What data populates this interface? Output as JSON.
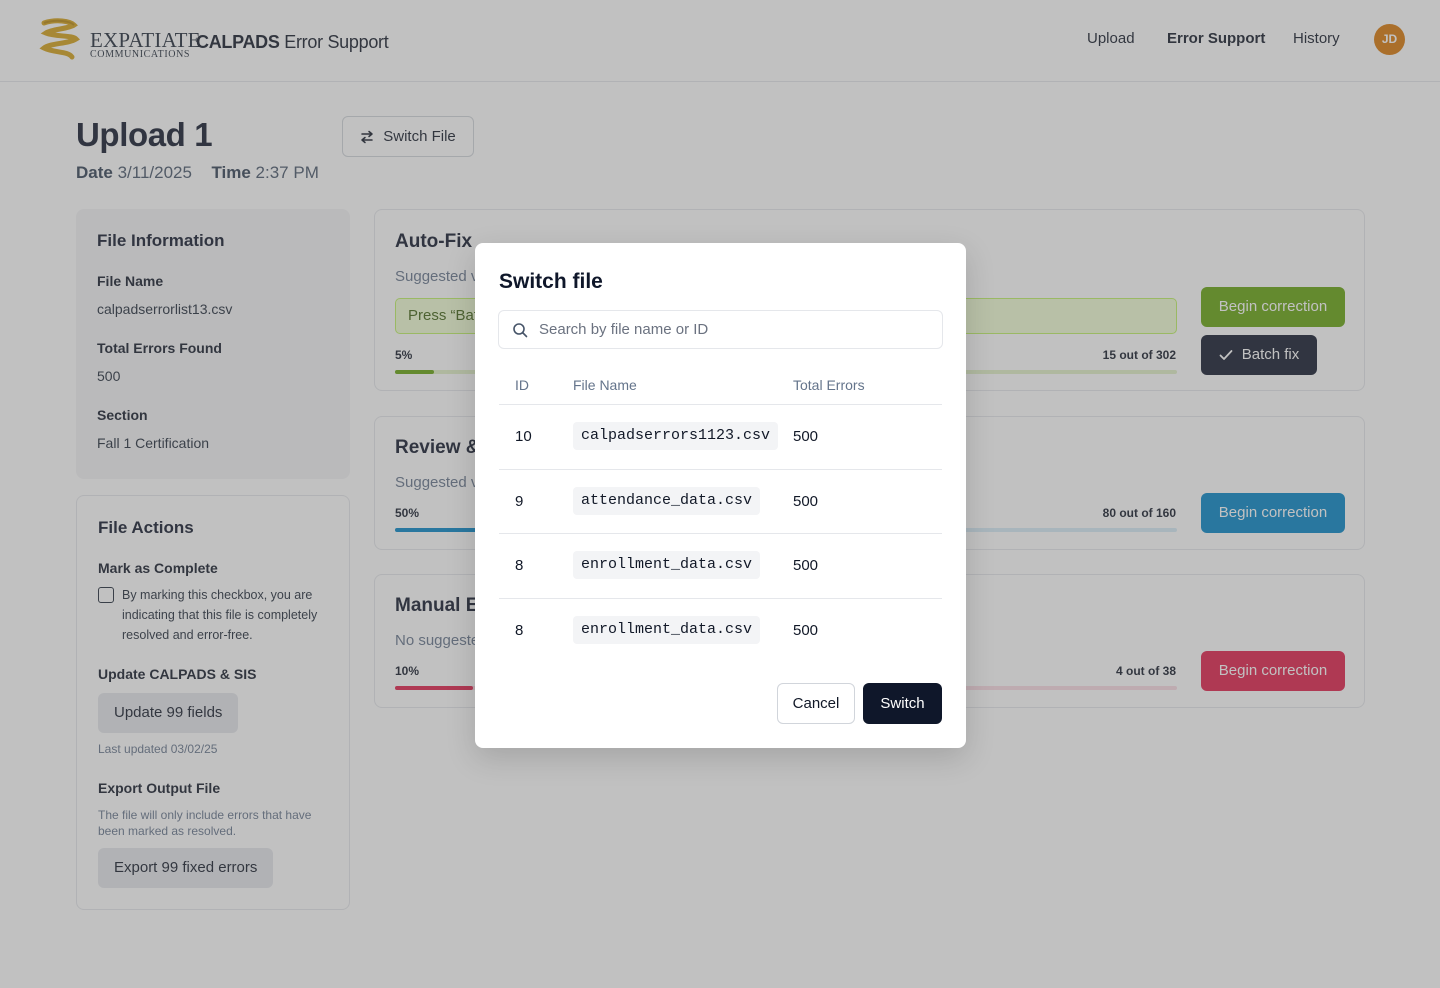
{
  "header": {
    "logo_primary": "EXPATIATE",
    "logo_secondary": "COMMUNICATIONS",
    "app_title_bold": "CALPADS",
    "app_title_rest": "Error Support",
    "nav": [
      "Upload",
      "Error Support",
      "History"
    ],
    "active_nav": "Error Support",
    "avatar_initials": "JD",
    "avatar_color": "#d97706"
  },
  "page": {
    "title": "Upload 1",
    "date_label": "Date",
    "date_value": "3/11/2025",
    "time_label": "Time",
    "time_value": "2:37 PM",
    "switch_file_label": "Switch File",
    "switch_file_icon": "swap-arrows-icon"
  },
  "file_info": {
    "heading": "File Information",
    "file_name_label": "File Name",
    "file_name": "calpadserrorlist13.csv",
    "total_errors_label": "Total Errors Found",
    "total_errors": "500",
    "section_label": "Section",
    "section": "Fall 1 Certification"
  },
  "file_actions": {
    "heading": "File Actions",
    "mark_complete_label": "Mark as Complete",
    "mark_complete_text": "By marking this checkbox, you are indicating that this file is completely resolved and error-free.",
    "update_label": "Update CALPADS & SIS",
    "update_button": "Update 99 fields",
    "last_updated": "Last updated 03/02/25",
    "export_label": "Export Output File",
    "export_note": "The file will only include errors that have been marked as resolved.",
    "export_button": "Export 99 fixed errors"
  },
  "sections": {
    "autofix": {
      "title": "Auto-Fix",
      "subtitle": "Suggested v",
      "hint": "Press “Bat",
      "percent_label": "5%",
      "progress": 0.05,
      "count": "15 out of 302",
      "begin_button": "Begin correction",
      "batch_button": "Batch fix",
      "batch_icon": "check-icon",
      "color": "#65a30d"
    },
    "review": {
      "title": "Review &",
      "subtitle": "Suggested v",
      "percent_label": "50%",
      "progress": 0.5,
      "count": "80 out of 160",
      "begin_button": "Begin correction",
      "color": "#0284c7"
    },
    "manual": {
      "title": "Manual E",
      "subtitle": "No suggeste",
      "percent_label": "10%",
      "progress": 0.1,
      "count": "4 out of 38",
      "begin_button": "Begin correction",
      "color": "#e11d48"
    }
  },
  "modal": {
    "title": "Switch file",
    "search_placeholder": "Search by file name or ID",
    "search_icon": "search-icon",
    "columns": [
      "ID",
      "File Name",
      "Total Errors"
    ],
    "rows": [
      {
        "id": "10",
        "file": "calpadserrors1123.csv",
        "errors": "500"
      },
      {
        "id": "9",
        "file": "attendance_data.csv",
        "errors": "500"
      },
      {
        "id": "8",
        "file": "enrollment_data.csv",
        "errors": "500"
      },
      {
        "id": "8",
        "file": "enrollment_data.csv",
        "errors": "500"
      }
    ],
    "cancel_button": "Cancel",
    "switch_button": "Switch"
  }
}
